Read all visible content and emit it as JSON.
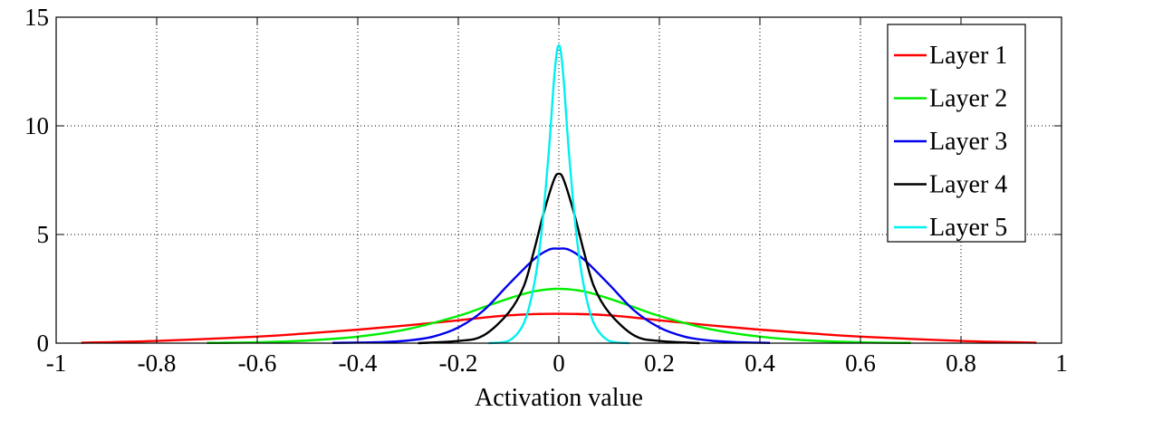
{
  "chart_data": {
    "type": "line",
    "title": "",
    "xlabel": "Activation value",
    "ylabel": "",
    "xlim": [
      -1,
      1
    ],
    "ylim": [
      0,
      15
    ],
    "grid": true,
    "legend_position": "top-right",
    "x_ticks": [
      -1,
      -0.8,
      -0.6,
      -0.4,
      -0.2,
      0,
      0.2,
      0.4,
      0.6,
      0.8,
      1
    ],
    "x_tick_labels": [
      "-1",
      "-0.8",
      "-0.6",
      "-0.4",
      "-0.2",
      "0",
      "0.2",
      "0.4",
      "0.6",
      "0.8",
      "1"
    ],
    "y_ticks": [
      0,
      5,
      10,
      15
    ],
    "y_tick_labels": [
      "0",
      "5",
      "10",
      "15"
    ],
    "series": [
      {
        "name": "Layer 1",
        "color": "#ff0000",
        "x": [
          -0.95,
          -0.8,
          -0.6,
          -0.5,
          -0.4,
          -0.3,
          -0.2,
          -0.1,
          0,
          0.1,
          0.2,
          0.3,
          0.4,
          0.5,
          0.6,
          0.8,
          0.95
        ],
        "y": [
          0.02,
          0.1,
          0.3,
          0.45,
          0.62,
          0.82,
          1.05,
          1.28,
          1.35,
          1.28,
          1.05,
          0.82,
          0.62,
          0.45,
          0.3,
          0.1,
          0.02
        ]
      },
      {
        "name": "Layer 2",
        "color": "#00ee00",
        "x": [
          -0.7,
          -0.6,
          -0.5,
          -0.4,
          -0.3,
          -0.2,
          -0.15,
          -0.1,
          -0.05,
          0,
          0.05,
          0.1,
          0.15,
          0.2,
          0.3,
          0.4,
          0.5,
          0.6,
          0.7
        ],
        "y": [
          0.01,
          0.04,
          0.12,
          0.3,
          0.65,
          1.25,
          1.65,
          2.05,
          2.38,
          2.5,
          2.38,
          2.05,
          1.65,
          1.25,
          0.65,
          0.3,
          0.12,
          0.04,
          0.01
        ]
      },
      {
        "name": "Layer 3",
        "color": "#0000ee",
        "x": [
          -0.45,
          -0.35,
          -0.3,
          -0.25,
          -0.2,
          -0.15,
          -0.1,
          -0.05,
          -0.02,
          0,
          0.02,
          0.05,
          0.1,
          0.15,
          0.2,
          0.25,
          0.3,
          0.35,
          0.42
        ],
        "y": [
          0.01,
          0.05,
          0.12,
          0.3,
          0.72,
          1.5,
          2.7,
          3.85,
          4.3,
          4.35,
          4.3,
          3.85,
          2.7,
          1.5,
          0.72,
          0.3,
          0.12,
          0.05,
          0.01
        ]
      },
      {
        "name": "Layer 4",
        "color": "#000000",
        "x": [
          -0.28,
          -0.2,
          -0.15,
          -0.1,
          -0.07,
          -0.05,
          -0.03,
          -0.01,
          0,
          0.01,
          0.03,
          0.05,
          0.07,
          0.1,
          0.15,
          0.2,
          0.28
        ],
        "y": [
          0.0,
          0.1,
          0.35,
          1.4,
          2.6,
          4.2,
          6.0,
          7.5,
          7.8,
          7.5,
          6.0,
          4.2,
          2.6,
          1.4,
          0.35,
          0.1,
          0.0
        ]
      },
      {
        "name": "Layer 5",
        "color": "#00f0f0",
        "x": [
          -0.14,
          -0.1,
          -0.07,
          -0.05,
          -0.035,
          -0.02,
          -0.01,
          -0.004,
          0,
          0.004,
          0.01,
          0.02,
          0.035,
          0.05,
          0.07,
          0.1,
          0.14
        ],
        "y": [
          0.0,
          0.1,
          0.9,
          2.6,
          5.0,
          8.8,
          12.0,
          13.4,
          13.7,
          13.4,
          12.0,
          8.8,
          5.0,
          2.6,
          0.9,
          0.1,
          0.0
        ]
      }
    ]
  }
}
